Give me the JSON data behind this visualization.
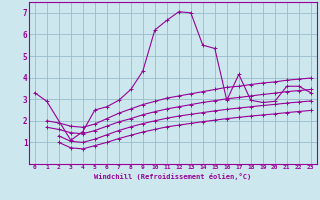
{
  "bg_color": "#cce8ee",
  "line_color": "#990099",
  "grid_color": "#99bbcc",
  "xlabel": "Windchill (Refroidissement éolien,°C)",
  "xlim": [
    -0.5,
    23.5
  ],
  "ylim": [
    0,
    7.5
  ],
  "yticks": [
    1,
    2,
    3,
    4,
    5,
    6,
    7
  ],
  "xticks": [
    0,
    1,
    2,
    3,
    4,
    5,
    6,
    7,
    8,
    9,
    10,
    11,
    12,
    13,
    14,
    15,
    16,
    17,
    18,
    19,
    20,
    21,
    22,
    23
  ],
  "series1_x": [
    0,
    1,
    3,
    4,
    5,
    6,
    7,
    8,
    9,
    10,
    11,
    12,
    13,
    14,
    15,
    16,
    17,
    18,
    19,
    20,
    21,
    22,
    23
  ],
  "series1_y": [
    3.3,
    2.9,
    1.1,
    1.5,
    2.5,
    2.65,
    2.95,
    3.45,
    4.3,
    6.2,
    6.65,
    7.05,
    7.0,
    5.5,
    5.35,
    2.95,
    4.15,
    2.95,
    2.85,
    2.9,
    3.6,
    3.6,
    3.3
  ],
  "series2_x": [
    1,
    2,
    3,
    4,
    5,
    6,
    7,
    8,
    9,
    10,
    11,
    12,
    13,
    14,
    15,
    16,
    17,
    18,
    19,
    20,
    21,
    22,
    23
  ],
  "series2_y": [
    2.0,
    1.9,
    1.75,
    1.7,
    1.85,
    2.1,
    2.35,
    2.55,
    2.75,
    2.9,
    3.05,
    3.15,
    3.25,
    3.35,
    3.45,
    3.55,
    3.6,
    3.68,
    3.75,
    3.8,
    3.88,
    3.93,
    3.98
  ],
  "series3_x": [
    1,
    2,
    3,
    4,
    5,
    6,
    7,
    8,
    9,
    10,
    11,
    12,
    13,
    14,
    15,
    16,
    17,
    18,
    19,
    20,
    21,
    22,
    23
  ],
  "series3_y": [
    1.7,
    1.6,
    1.45,
    1.4,
    1.55,
    1.75,
    1.95,
    2.1,
    2.28,
    2.42,
    2.55,
    2.65,
    2.75,
    2.85,
    2.93,
    3.02,
    3.08,
    3.15,
    3.22,
    3.28,
    3.35,
    3.4,
    3.45
  ],
  "series4_x": [
    2,
    3,
    4,
    5,
    6,
    7,
    8,
    9,
    10,
    11,
    12,
    13,
    14,
    15,
    16,
    17,
    18,
    19,
    20,
    21,
    22,
    23
  ],
  "series4_y": [
    1.3,
    1.05,
    1.0,
    1.15,
    1.35,
    1.55,
    1.72,
    1.87,
    2.0,
    2.12,
    2.22,
    2.3,
    2.38,
    2.46,
    2.53,
    2.59,
    2.65,
    2.71,
    2.76,
    2.82,
    2.87,
    2.92
  ],
  "series5_x": [
    2,
    3,
    4,
    5,
    6,
    7,
    8,
    9,
    10,
    11,
    12,
    13,
    14,
    15,
    16,
    17,
    18,
    19,
    20,
    21,
    22,
    23
  ],
  "series5_y": [
    1.0,
    0.75,
    0.7,
    0.85,
    1.0,
    1.18,
    1.33,
    1.48,
    1.6,
    1.72,
    1.8,
    1.88,
    1.96,
    2.03,
    2.1,
    2.16,
    2.22,
    2.27,
    2.32,
    2.38,
    2.43,
    2.48
  ]
}
